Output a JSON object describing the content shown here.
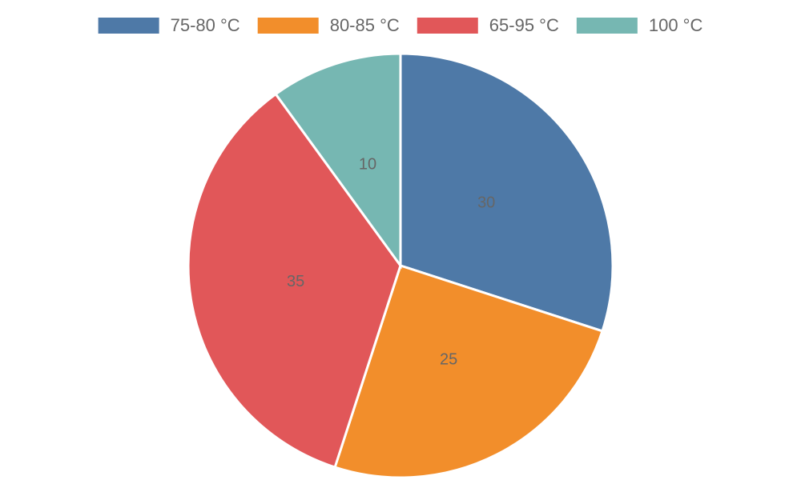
{
  "chart_data": {
    "type": "pie",
    "categories": [
      "75-80 °C",
      "80-85 °C",
      "65-95 °C",
      "100 °C"
    ],
    "values": [
      30,
      25,
      35,
      10
    ],
    "colors": [
      "#4e79a7",
      "#f28e2b",
      "#e15759",
      "#76b7b2"
    ],
    "legend": "top"
  }
}
